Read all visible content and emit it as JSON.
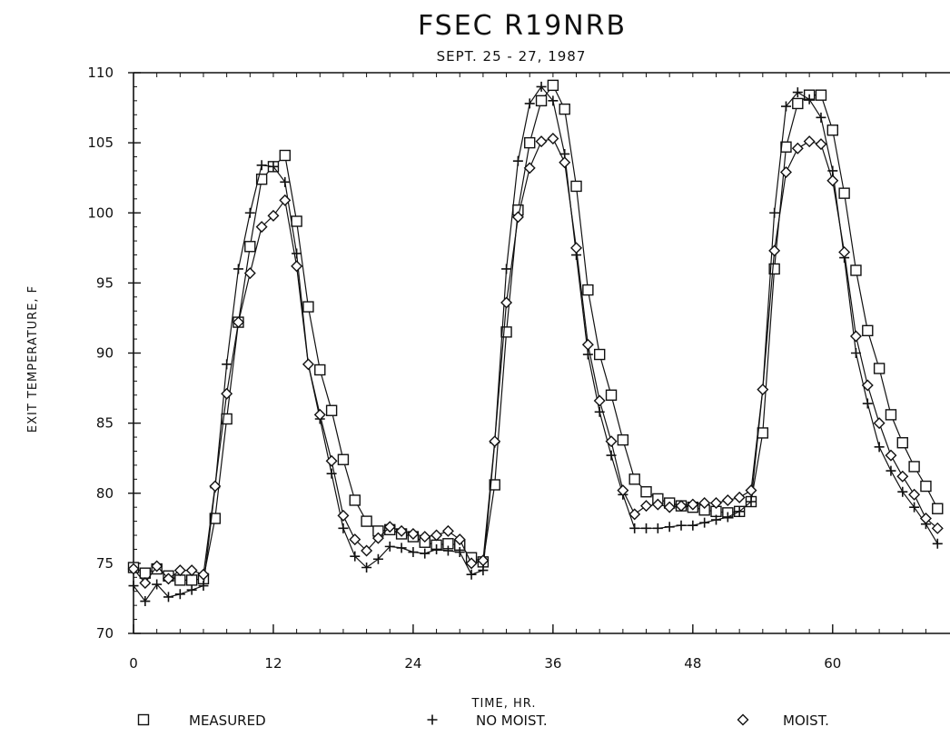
{
  "chart_data": {
    "type": "line",
    "title": "FSEC R19NRB",
    "subtitle": "SEPT. 25 - 27, 1987",
    "xlabel": "TIME, HR.",
    "ylabel": "EXIT TEMPERATURE, F",
    "xlim": [
      0,
      69
    ],
    "ylim": [
      70,
      110
    ],
    "xticks": [
      0,
      12,
      24,
      36,
      48,
      60
    ],
    "xtick_labels": [
      "0",
      "12",
      "24",
      "36",
      "48",
      "60"
    ],
    "yticks": [
      70,
      75,
      80,
      85,
      90,
      95,
      100,
      105,
      110
    ],
    "ytick_labels": [
      "70",
      "75",
      "80",
      "85",
      "90",
      "95",
      "100",
      "105",
      "110"
    ],
    "grid": false,
    "legend_position": "bottom",
    "series": [
      {
        "name": "MEASURED",
        "marker": "square",
        "x": [
          0,
          1,
          2,
          3,
          4,
          5,
          6,
          7,
          8,
          9,
          10,
          11,
          12,
          13,
          14,
          15,
          16,
          17,
          18,
          19,
          20,
          21,
          22,
          23,
          24,
          25,
          26,
          27,
          28,
          29,
          30,
          31,
          32,
          33,
          34,
          35,
          36,
          37,
          38,
          39,
          40,
          41,
          42,
          43,
          44,
          45,
          46,
          47,
          48,
          49,
          50,
          51,
          52,
          53,
          54,
          55,
          56,
          57,
          58,
          59,
          60,
          61,
          62,
          63,
          64,
          65,
          66,
          67,
          68,
          69
        ],
        "values": [
          74.7,
          74.3,
          74.6,
          74.1,
          73.8,
          73.8,
          73.9,
          78.2,
          85.3,
          92.2,
          97.6,
          102.4,
          103.3,
          104.1,
          99.4,
          93.3,
          88.8,
          85.9,
          82.4,
          79.5,
          78.0,
          77.3,
          77.4,
          77.1,
          76.9,
          76.5,
          76.3,
          76.4,
          76.3,
          75.4,
          75.1,
          80.6,
          91.5,
          100.2,
          105.0,
          108.0,
          109.1,
          107.4,
          101.9,
          94.5,
          89.9,
          87.0,
          83.8,
          81.0,
          80.1,
          79.6,
          79.3,
          79.1,
          79.0,
          78.8,
          78.7,
          78.6,
          78.7,
          79.4,
          84.3,
          96.0,
          104.7,
          107.8,
          108.4,
          108.4,
          105.9,
          101.4,
          95.9,
          91.6,
          88.9,
          85.6,
          83.6,
          81.9,
          80.5,
          78.9
        ]
      },
      {
        "name": "NO MOIST.",
        "marker": "plus",
        "x": [
          0,
          1,
          2,
          3,
          4,
          5,
          6,
          7,
          8,
          9,
          10,
          11,
          12,
          13,
          14,
          15,
          16,
          17,
          18,
          19,
          20,
          21,
          22,
          23,
          24,
          25,
          26,
          27,
          28,
          29,
          30,
          31,
          32,
          33,
          34,
          35,
          36,
          37,
          38,
          39,
          40,
          41,
          42,
          43,
          44,
          45,
          46,
          47,
          48,
          49,
          50,
          51,
          52,
          53,
          54,
          55,
          56,
          57,
          58,
          59,
          60,
          61,
          62,
          63,
          64,
          65,
          66,
          67,
          68,
          69
        ],
        "values": [
          73.4,
          72.3,
          73.5,
          72.6,
          72.8,
          73.1,
          73.4,
          80.4,
          89.2,
          96.0,
          100.0,
          103.4,
          103.3,
          102.2,
          97.1,
          89.2,
          85.3,
          81.4,
          77.5,
          75.5,
          74.7,
          75.3,
          76.2,
          76.1,
          75.8,
          75.7,
          76.0,
          75.9,
          75.8,
          74.2,
          74.5,
          83.6,
          96.0,
          103.7,
          107.8,
          109.0,
          108.0,
          104.2,
          97.0,
          89.9,
          85.8,
          82.7,
          79.9,
          77.5,
          77.5,
          77.5,
          77.6,
          77.7,
          77.7,
          77.9,
          78.1,
          78.3,
          78.7,
          79.4,
          87.4,
          100.0,
          107.6,
          108.6,
          108.1,
          106.8,
          103.0,
          96.8,
          90.0,
          86.4,
          83.3,
          81.6,
          80.1,
          79.0,
          77.8,
          76.4
        ]
      },
      {
        "name": "MOIST.",
        "marker": "diamond",
        "x": [
          0,
          1,
          2,
          3,
          4,
          5,
          6,
          7,
          8,
          9,
          10,
          11,
          12,
          13,
          14,
          15,
          16,
          17,
          18,
          19,
          20,
          21,
          22,
          23,
          24,
          25,
          26,
          27,
          28,
          29,
          30,
          31,
          32,
          33,
          34,
          35,
          36,
          37,
          38,
          39,
          40,
          41,
          42,
          43,
          44,
          45,
          46,
          47,
          48,
          49,
          50,
          51,
          52,
          53,
          54,
          55,
          56,
          57,
          58,
          59,
          60,
          61,
          62,
          63,
          64,
          65,
          66,
          67,
          68,
          69
        ],
        "values": [
          74.6,
          73.6,
          74.8,
          73.9,
          74.5,
          74.5,
          74.2,
          80.5,
          87.1,
          92.2,
          95.7,
          99.0,
          99.8,
          100.9,
          96.2,
          89.2,
          85.6,
          82.3,
          78.4,
          76.7,
          75.9,
          76.8,
          77.6,
          77.3,
          77.1,
          76.9,
          77.0,
          77.3,
          76.7,
          75.0,
          75.2,
          83.7,
          93.6,
          99.7,
          103.2,
          105.1,
          105.3,
          103.6,
          97.5,
          90.6,
          86.6,
          83.7,
          80.2,
          78.5,
          79.1,
          79.2,
          79.0,
          79.1,
          79.2,
          79.3,
          79.3,
          79.5,
          79.7,
          80.2,
          87.4,
          97.3,
          102.9,
          104.6,
          105.1,
          104.9,
          102.3,
          97.2,
          91.2,
          87.7,
          85.0,
          82.7,
          81.2,
          79.9,
          78.2,
          77.5
        ]
      }
    ]
  }
}
